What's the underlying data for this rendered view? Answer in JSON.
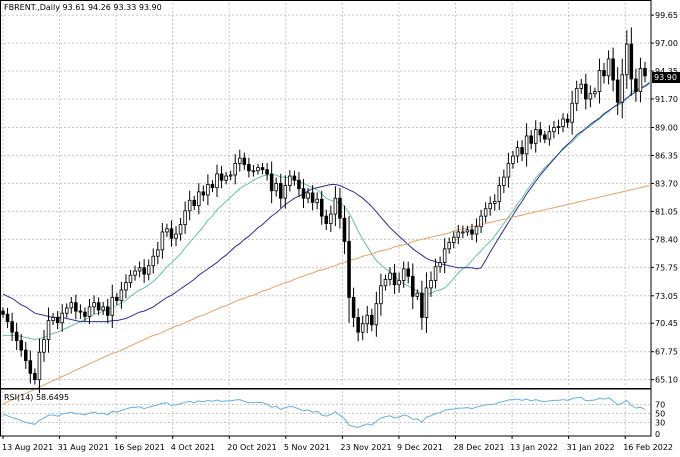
{
  "colors": {
    "background": "#ffffff",
    "grid": "#c8c8c8",
    "frame": "#000000",
    "candle_up_body": "#ffffff",
    "candle_down_body": "#000000",
    "candle_outline": "#000000",
    "price_tag_bg": "#000000",
    "price_tag_text": "#ffffff",
    "ma_fast": "#6bbfa3",
    "ma_medium": "#2e2e99",
    "ma_slow": "#e8a060",
    "rsi_line": "#63b0e6"
  },
  "chart_data": [
    {
      "type": "candlestick",
      "header": "FBRENT.,Daily  93.61 94.26 93.33 93.90",
      "current_price": "93.90",
      "grid": true,
      "ylim": [
        64.5,
        100.8
      ],
      "y_ticks": [
        "65.10",
        "67.75",
        "70.45",
        "73.05",
        "75.75",
        "78.40",
        "81.05",
        "83.70",
        "86.35",
        "89.00",
        "91.70",
        "94.35",
        "97.00",
        "99.65"
      ],
      "x_ticks": [
        "13 Aug 2021",
        "31 Aug 2021",
        "16 Sep 2021",
        "4 Oct 2021",
        "20 Oct 2021",
        "5 Nov 2021",
        "23 Nov 2021",
        "9 Dec 2021",
        "28 Dec 2021",
        "13 Jan 2022",
        "31 Jan 2022",
        "16 Feb 2022"
      ],
      "close": [
        71.3,
        70.6,
        69.6,
        68.8,
        67.9,
        66.9,
        65.7,
        65.1,
        67.7,
        68.9,
        70.7,
        71.0,
        70.5,
        71.4,
        71.9,
        72.4,
        71.6,
        71.5,
        71.1,
        72.0,
        72.4,
        71.7,
        72.0,
        71.2,
        72.9,
        72.6,
        73.6,
        74.3,
        75.0,
        75.4,
        75.7,
        75.1,
        75.9,
        76.8,
        77.4,
        79.1,
        79.4,
        78.5,
        78.9,
        79.8,
        81.1,
        82.1,
        81.6,
        82.9,
        82.6,
        83.6,
        83.3,
        84.6,
        84.0,
        84.4,
        84.5,
        85.6,
        86.1,
        85.5,
        84.9,
        84.9,
        85.2,
        85.0,
        84.6,
        83.0,
        83.7,
        82.3,
        83.5,
        84.4,
        84.0,
        83.2,
        82.3,
        82.8,
        81.9,
        82.2,
        80.6,
        79.9,
        80.8,
        82.3,
        80.4,
        78.2,
        72.9,
        71.0,
        69.6,
        70.4,
        71.2,
        70.3,
        72.3,
        74.0,
        74.6,
        75.2,
        74.1,
        74.5,
        75.6,
        74.9,
        73.0,
        73.3,
        71.0,
        73.8,
        74.5,
        75.8,
        76.2,
        77.5,
        78.1,
        78.6,
        79.1,
        79.1,
        79.3,
        78.9,
        79.6,
        80.6,
        81.3,
        81.8,
        82.0,
        83.5,
        84.3,
        85.6,
        86.3,
        87.1,
        86.5,
        88.2,
        87.5,
        88.8,
        88.3,
        87.9,
        88.6,
        89.0,
        89.1,
        89.8,
        89.5,
        91.3,
        92.7,
        93.1,
        91.7,
        92.2,
        92.4,
        94.4,
        93.9,
        95.5,
        93.5,
        91.4,
        94.0,
        96.9,
        93.6,
        92.4,
        94.6,
        93.9
      ],
      "series": [
        {
          "name": "",
          "color": "#6bbfa3",
          "values": [
            69.3,
            69.3,
            69.3,
            69.3,
            69.2,
            69.1,
            69.0,
            68.9,
            69.0,
            69.1,
            69.3,
            69.5,
            69.6,
            69.8,
            70.0,
            70.2,
            70.4,
            70.6,
            70.8,
            71.0,
            71.3,
            71.4,
            71.6,
            71.7,
            72.0,
            72.1,
            72.4,
            72.6,
            73.0,
            73.3,
            73.6,
            73.8,
            74.1,
            74.4,
            74.8,
            75.3,
            75.8,
            76.2,
            76.6,
            77.0,
            77.6,
            78.1,
            78.6,
            79.1,
            79.6,
            80.2,
            80.6,
            81.2,
            81.6,
            82.0,
            82.4,
            82.8,
            83.2,
            83.5,
            83.7,
            84.0,
            84.2,
            84.4,
            84.5,
            84.5,
            84.5,
            84.3,
            84.3,
            84.2,
            84.1,
            83.9,
            83.7,
            83.5,
            83.3,
            83.1,
            82.7,
            82.3,
            82.1,
            82.0,
            81.8,
            81.5,
            80.9,
            80.1,
            79.2,
            78.4,
            77.7,
            77.0,
            76.4,
            76.0,
            75.6,
            75.3,
            74.9,
            74.5,
            74.2,
            74.0,
            73.7,
            73.5,
            73.2,
            73.2,
            73.3,
            73.5,
            73.6,
            73.8,
            74.2,
            74.7,
            75.2,
            75.6,
            75.9,
            76.4,
            76.9,
            77.3,
            77.8,
            78.2,
            78.7,
            79.3,
            79.9,
            80.5,
            81.1,
            81.8,
            82.3,
            83.0,
            83.6,
            84.2,
            84.7,
            85.2,
            85.6,
            86.1,
            86.5,
            86.9,
            87.3,
            87.6,
            88.1,
            88.5,
            88.9,
            89.1,
            89.5,
            89.8,
            90.2,
            90.5,
            90.9,
            91.1,
            91.3,
            91.7,
            92.3,
            92.6,
            92.8,
            93.0,
            93.3
          ]
        },
        {
          "name": "",
          "color": "#2e2e99",
          "values": [
            73.2,
            73.0,
            72.8,
            72.5,
            72.2,
            72.0,
            71.7,
            71.4,
            71.3,
            71.2,
            71.1,
            71.0,
            71.0,
            71.0,
            70.9,
            70.8,
            70.7,
            70.6,
            70.6,
            70.6,
            70.6,
            70.6,
            70.6,
            70.6,
            70.7,
            70.7,
            70.8,
            70.9,
            71.1,
            71.3,
            71.5,
            71.6,
            71.8,
            72.0,
            72.3,
            72.6,
            72.9,
            73.1,
            73.4,
            73.7,
            74.0,
            74.3,
            74.6,
            75.0,
            75.3,
            75.6,
            75.9,
            76.2,
            76.6,
            76.9,
            77.3,
            77.7,
            78.0,
            78.4,
            78.7,
            79.1,
            79.5,
            79.8,
            80.2,
            80.6,
            80.9,
            81.3,
            81.7,
            82.0,
            82.3,
            82.5,
            82.7,
            83.0,
            83.2,
            83.3,
            83.4,
            83.5,
            83.6,
            83.6,
            83.5,
            83.3,
            83.1,
            82.9,
            82.6,
            82.3,
            81.9,
            81.5,
            81.0,
            80.5,
            80.0,
            79.5,
            79.1,
            78.7,
            78.3,
            77.9,
            77.5,
            77.2,
            76.9,
            76.6,
            76.4,
            76.3,
            76.1,
            76.0,
            75.9,
            75.8,
            75.7,
            75.7,
            75.7,
            75.7,
            75.6,
            75.7,
            76.4,
            77.2,
            77.9,
            78.6,
            79.3,
            80.0,
            80.7,
            81.4,
            82.0,
            82.7,
            83.3,
            83.9,
            84.5,
            85.0,
            85.5,
            86.0,
            86.5,
            87.0,
            87.4,
            87.8,
            88.3,
            88.6,
            88.9,
            89.3,
            89.6,
            89.9,
            90.3,
            90.6,
            90.9,
            91.2,
            91.5,
            91.8,
            92.1,
            92.4,
            92.7,
            92.9,
            93.2
          ]
        },
        {
          "name": "",
          "color": "#e8a060",
          "values": [
            62.8,
            63.0,
            63.2,
            63.4,
            63.6,
            63.8,
            64.0,
            64.2,
            64.4,
            64.6,
            64.8,
            65.0,
            65.2,
            65.4,
            65.6,
            65.8,
            66.0,
            66.2,
            66.4,
            66.6,
            66.8,
            67.0,
            67.2,
            67.4,
            67.6,
            67.7,
            67.9,
            68.1,
            68.3,
            68.5,
            68.7,
            68.9,
            69.1,
            69.3,
            69.4,
            69.6,
            69.8,
            70.0,
            70.2,
            70.3,
            70.5,
            70.7,
            70.9,
            71.1,
            71.2,
            71.4,
            71.6,
            71.8,
            72.0,
            72.1,
            72.3,
            72.5,
            72.7,
            72.8,
            73.0,
            73.1,
            73.3,
            73.5,
            73.6,
            73.8,
            74.0,
            74.1,
            74.3,
            74.4,
            74.6,
            74.8,
            74.9,
            75.1,
            75.2,
            75.4,
            75.5,
            75.6,
            75.8,
            75.9,
            76.1,
            76.2,
            76.4,
            76.5,
            76.6,
            76.8,
            76.9,
            77.0,
            77.2,
            77.3,
            77.4,
            77.5,
            77.7,
            77.8,
            77.9,
            78.0,
            78.2,
            78.3,
            78.4,
            78.5,
            78.6,
            78.7,
            78.8,
            78.9,
            79.0,
            79.2,
            79.3,
            79.4,
            79.5,
            79.6,
            79.7,
            79.8,
            79.9,
            80.0,
            80.1,
            80.2,
            80.3,
            80.4,
            80.5,
            80.6,
            80.7,
            80.8,
            80.9,
            81.0,
            81.1,
            81.2,
            81.3,
            81.4,
            81.5,
            81.6,
            81.7,
            81.8,
            81.9,
            82.0,
            82.1,
            82.2,
            82.3,
            82.4,
            82.5,
            82.6,
            82.7,
            82.8,
            82.9,
            83.0,
            83.1,
            83.2,
            83.3,
            83.4,
            83.5
          ]
        }
      ]
    },
    {
      "type": "line",
      "header": "RSI(14) 58.6495",
      "ylim": [
        0,
        100
      ],
      "y_ticks": [
        "70",
        "50",
        "30",
        "0"
      ],
      "series": [
        {
          "name": "RSI(14)",
          "color": "#63b0e6",
          "values": [
            48,
            45,
            41,
            38,
            34,
            30,
            28,
            26,
            35,
            40,
            46,
            47,
            44,
            49,
            51,
            53,
            49,
            49,
            47,
            51,
            53,
            49,
            51,
            47,
            55,
            53,
            57,
            60,
            63,
            64,
            65,
            61,
            64,
            67,
            69,
            73,
            74,
            68,
            69,
            72,
            75,
            77,
            74,
            78,
            76,
            79,
            77,
            80,
            77,
            78,
            78,
            80,
            81,
            77,
            74,
            74,
            75,
            74,
            71,
            64,
            66,
            59,
            63,
            66,
            64,
            60,
            56,
            58,
            53,
            55,
            47,
            44,
            48,
            54,
            46,
            38,
            24,
            21,
            19,
            23,
            27,
            24,
            33,
            40,
            43,
            45,
            40,
            42,
            47,
            44,
            37,
            38,
            31,
            42,
            45,
            50,
            52,
            57,
            59,
            60,
            62,
            62,
            63,
            61,
            64,
            67,
            69,
            70,
            71,
            75,
            77,
            80,
            81,
            82,
            79,
            82,
            78,
            81,
            78,
            76,
            78,
            79,
            79,
            81,
            79,
            83,
            85,
            86,
            78,
            79,
            80,
            84,
            82,
            85,
            78,
            69,
            73,
            79,
            68,
            62,
            64,
            59
          ]
        }
      ]
    }
  ]
}
